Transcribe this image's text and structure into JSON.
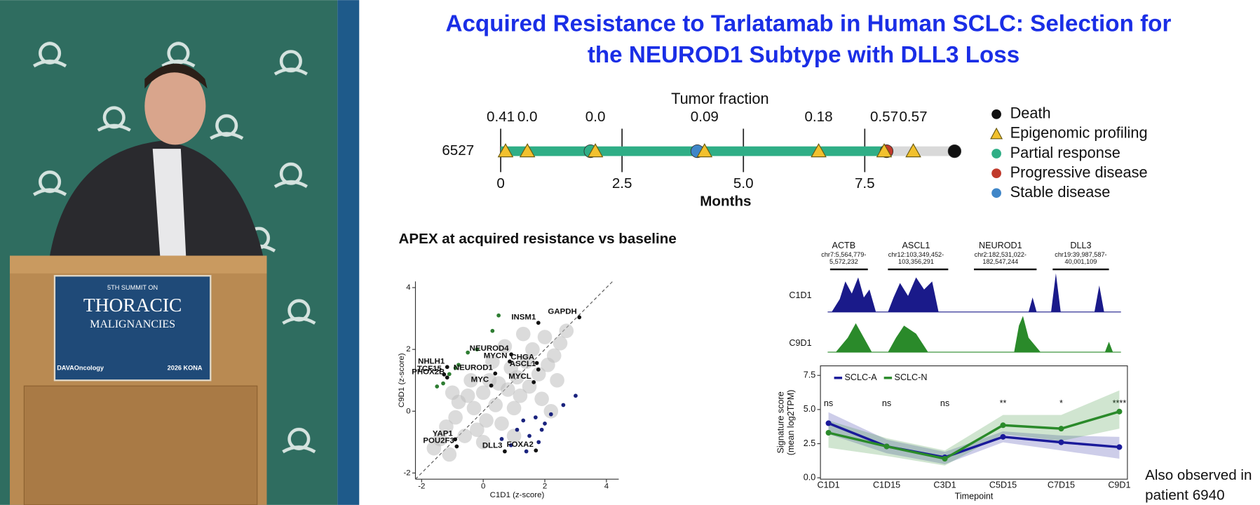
{
  "photo": {
    "podium": [
      "5TH SUMMIT ON",
      "THORACIC",
      "MALIGNANCIES"
    ],
    "logo": "DAVAOncology",
    "event": "2026 KONA"
  },
  "slide": {
    "title": [
      "Acquired Resistance to Tarlatamab in Human SCLC: Selection for",
      "the NEUROD1 Subtype with DLL3 Loss"
    ],
    "note": [
      "Also observed in",
      "patient 6940"
    ]
  },
  "tracks": {
    "genes": [
      {
        "name": "ACTB",
        "locus": [
          "chr7:5,564,779-",
          "5,572,232"
        ]
      },
      {
        "name": "ASCL1",
        "locus": [
          "chr12:103,349,452-",
          "103,356,291"
        ]
      },
      {
        "name": "NEUROD1",
        "locus": [
          "chr2:182,531,022-",
          "182,547,244"
        ]
      },
      {
        "name": "DLL3",
        "locus": [
          "chr19:39,987,587-",
          "40,001,109"
        ]
      }
    ],
    "samples": [
      "C1D1",
      "C9D1"
    ]
  },
  "chart_data": [
    {
      "type": "timeline",
      "title": "Tumor fraction",
      "x_label": "Months",
      "rows": [
        "6527"
      ],
      "xlim": [
        -0.2,
        9.6
      ],
      "xticks": [
        0,
        2.5,
        {
          "value": 5,
          "label": "5.0"
        },
        7.5
      ],
      "periods": [
        {
          "x": [
            0,
            7.9
          ],
          "color": "#2fae86"
        },
        {
          "x": [
            7.9,
            9.35
          ],
          "color": "#d9d9d9"
        }
      ],
      "annotations": {
        "x": [
          0,
          0.55,
          1.95,
          4.2,
          6.55,
          7.9,
          8.5
        ],
        "values": [
          0.41,
          0,
          0,
          0.09,
          0.18,
          0.57,
          0.57
        ],
        "value_labels": [
          "0.41",
          "0.0",
          "0.0",
          "0.09",
          "0.18",
          "0.57",
          "0.57"
        ]
      },
      "series": [
        {
          "name": "Death",
          "color": "#111111",
          "marker": "circle",
          "x": [
            9.35
          ]
        },
        {
          "name": "Epigenomic profiling",
          "color": "#f2c12e",
          "marker": "triangle",
          "x": [
            0.1,
            0.55,
            1.95,
            4.2,
            6.55,
            7.9,
            8.5
          ]
        },
        {
          "name": "Partial response",
          "color": "#2fae86",
          "marker": "circle",
          "x": [
            1.85
          ]
        },
        {
          "name": "Progressive disease",
          "color": "#c0392b",
          "marker": "circle",
          "x": [
            7.95
          ]
        },
        {
          "name": "Stable disease",
          "color": "#3f86c8",
          "marker": "circle",
          "x": [
            4.05
          ]
        }
      ]
    },
    {
      "type": "scatter",
      "title": "APEX at acquired resistance vs baseline",
      "x_label": "C1D1 (z-score)",
      "y_label": "C9D1 (z-score)",
      "xlim": [
        -2.2,
        4.4
      ],
      "ylim": [
        -2.2,
        4.2
      ],
      "xticks": [
        -2,
        0,
        2,
        4
      ],
      "yticks": [
        -2,
        0,
        2,
        4
      ],
      "series": [
        {
          "color": "#bdbdbd",
          "x": [
            -1.6,
            -1.4,
            -1.2,
            -1.1,
            -0.9,
            -0.8,
            -0.6,
            -0.5,
            -0.3,
            -0.2,
            0,
            0.1,
            0.2,
            0.4,
            0.5,
            0.6,
            0.8,
            0.9,
            1.0,
            1.1,
            1.2,
            1.4,
            1.5,
            1.6,
            1.8,
            2.0,
            2.1,
            2.3,
            2.5,
            2.7,
            -0.4,
            0.3,
            0.7,
            1.3,
            1.9,
            2.4,
            -1.0,
            0.0,
            1.0,
            2.2
          ],
          "values": [
            -1.2,
            -0.9,
            -0.5,
            -1.4,
            -0.2,
            0.3,
            -0.8,
            0.5,
            0.1,
            -0.6,
            0.6,
            -0.3,
            1.0,
            0.2,
            0.9,
            -0.4,
            0.7,
            1.4,
            0.1,
            1.1,
            0.5,
            1.6,
            0.8,
            2.0,
            1.2,
            2.4,
            1.5,
            1.8,
            2.2,
            2.6,
            1.0,
            1.6,
            2.1,
            2.5,
            0.4,
            1.0,
            0.6,
            -1.0,
            -0.8,
            0.0
          ]
        },
        {
          "color": "#2e7d32",
          "x": [
            -1.5,
            -1.3,
            -1.1,
            -0.9,
            -0.8,
            -0.5,
            -0.2,
            0.3,
            0.5
          ],
          "values": [
            0.8,
            0.9,
            1.2,
            1.4,
            1.5,
            1.9,
            2.0,
            2.6,
            3.1
          ]
        },
        {
          "color": "#1a237e",
          "x": [
            0.6,
            0.9,
            1.1,
            1.3,
            1.5,
            1.7,
            1.8,
            2.0,
            2.2,
            2.6,
            3.0,
            1.4,
            1.9
          ],
          "values": [
            -0.9,
            -1.1,
            -0.6,
            -0.3,
            -0.8,
            -0.2,
            -1.0,
            -0.4,
            -0.1,
            0.2,
            0.5,
            -1.3,
            -0.6
          ]
        },
        {
          "color": "#111111",
          "labels": [
            "GAPDH",
            "INSM1",
            "NEUROD4",
            "MYCN",
            "CHGA",
            "NHLH1",
            "ASCL1",
            "TCF15",
            "NEUROD1",
            "PHOX2B",
            "MYCL",
            "MYC",
            "YAP1",
            "POU2F3",
            "DLL3",
            "FOXA2"
          ],
          "x": [
            3.12,
            1.79,
            0.91,
            0.86,
            1.74,
            -1.17,
            1.79,
            -1.27,
            0.39,
            -1.17,
            1.64,
            0.26,
            -0.91,
            -0.86,
            0.7,
            1.71
          ],
          "values": [
            3.04,
            2.86,
            1.84,
            1.61,
            1.56,
            1.43,
            1.35,
            1.19,
            1.22,
            1.09,
            0.94,
            0.83,
            -0.91,
            -1.14,
            -1.3,
            -1.27
          ]
        }
      ]
    },
    {
      "type": "line",
      "x_label": "Timepoint",
      "y_label": [
        "Signature score",
        "(mean log2TPM)"
      ],
      "categories": [
        "C1D1",
        "C1D15",
        "C3D1",
        "C5D15",
        "C7D15",
        "C9D1"
      ],
      "ylim": [
        -0.1,
        8.2
      ],
      "yticks": [
        {
          "value": 0,
          "label": "0.0"
        },
        2.5,
        {
          "value": 5,
          "label": "5.0"
        },
        7.5
      ],
      "annotations": [
        "ns",
        "ns",
        "ns",
        "**",
        "*",
        "****"
      ],
      "series": [
        {
          "name": "SCLC-A",
          "color": "#1a1a9a",
          "values": [
            4.0,
            2.3,
            1.5,
            3.0,
            2.6,
            2.25
          ],
          "lower": [
            3.2,
            1.8,
            1.0,
            2.6,
            2.0,
            1.4
          ],
          "upper": [
            4.8,
            2.8,
            1.9,
            3.4,
            3.1,
            3.0
          ]
        },
        {
          "name": "SCLC-N",
          "color": "#2a8a2a",
          "values": [
            3.3,
            2.3,
            1.4,
            3.85,
            3.6,
            4.85
          ],
          "lower": [
            2.2,
            1.6,
            0.9,
            3.2,
            2.7,
            3.6
          ],
          "upper": [
            4.2,
            2.9,
            2.0,
            4.6,
            4.6,
            6.4
          ]
        }
      ]
    }
  ]
}
